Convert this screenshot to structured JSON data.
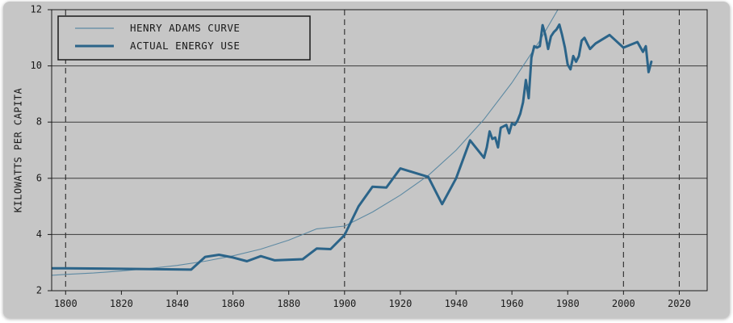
{
  "chart_data": {
    "type": "line",
    "title": "",
    "xlabel": "",
    "ylabel": "KILOWATTS PER CAPITA",
    "xlim": [
      1795,
      2030
    ],
    "ylim": [
      2,
      12
    ],
    "x_ticks": [
      1800,
      1820,
      1840,
      1860,
      1880,
      1900,
      1920,
      1940,
      1960,
      1980,
      2000,
      2020
    ],
    "y_ticks": [
      2,
      4,
      6,
      8,
      10,
      12
    ],
    "vertical_reference_lines": [
      1800,
      1900,
      2000,
      2020
    ],
    "grid": "horizontal",
    "legend_position": "top-left",
    "colors": {
      "series": "#2b6489",
      "curve": "#5e8aa3",
      "background": "#c6c6c6",
      "grid": "#3a3a3a"
    },
    "series": [
      {
        "name": "HENRY ADAMS CURVE",
        "style": "thin",
        "x": [
          1795,
          1800,
          1810,
          1820,
          1830,
          1840,
          1850,
          1860,
          1870,
          1880,
          1890,
          1900,
          1910,
          1920,
          1930,
          1940,
          1950,
          1960,
          1970,
          1980,
          1982
        ],
        "values": [
          2.55,
          2.58,
          2.63,
          2.7,
          2.79,
          2.9,
          3.05,
          3.24,
          3.48,
          3.8,
          4.2,
          4.3,
          4.8,
          5.4,
          6.1,
          7.0,
          8.1,
          9.4,
          10.9,
          12.6,
          13.0
        ]
      },
      {
        "name": "ACTUAL ENERGY USE",
        "style": "thick",
        "x": [
          1795,
          1800,
          1830,
          1845,
          1850,
          1855,
          1860,
          1865,
          1870,
          1875,
          1885,
          1890,
          1895,
          1900,
          1905,
          1910,
          1915,
          1920,
          1925,
          1930,
          1935,
          1940,
          1945,
          1950,
          1951,
          1952,
          1953,
          1954,
          1955,
          1956,
          1957,
          1958,
          1959,
          1960,
          1961,
          1962,
          1963,
          1964,
          1965,
          1966,
          1967,
          1968,
          1969,
          1970,
          1971,
          1972,
          1973,
          1974,
          1975,
          1976,
          1977,
          1978,
          1979,
          1980,
          1981,
          1982,
          1983,
          1984,
          1985,
          1986,
          1987,
          1988,
          1989,
          1990,
          1995,
          2000,
          2005,
          2007,
          2008,
          2009,
          2010
        ],
        "values": [
          2.8,
          2.8,
          2.77,
          2.75,
          3.2,
          3.28,
          3.18,
          3.05,
          3.23,
          3.08,
          3.12,
          3.5,
          3.48,
          3.98,
          5.0,
          5.7,
          5.67,
          6.35,
          6.2,
          6.05,
          5.08,
          6.0,
          7.35,
          6.73,
          7.1,
          7.67,
          7.4,
          7.45,
          7.1,
          7.8,
          7.85,
          7.9,
          7.6,
          7.95,
          7.9,
          8.05,
          8.3,
          8.7,
          9.5,
          8.85,
          10.3,
          10.7,
          10.65,
          10.7,
          11.45,
          11.1,
          10.6,
          11.05,
          11.2,
          11.3,
          11.47,
          11.1,
          10.65,
          10.05,
          9.88,
          10.35,
          10.15,
          10.35,
          10.9,
          11.0,
          10.8,
          10.6,
          10.7,
          10.8,
          11.1,
          10.65,
          10.85,
          10.5,
          10.7,
          9.78,
          10.15
        ]
      }
    ]
  }
}
